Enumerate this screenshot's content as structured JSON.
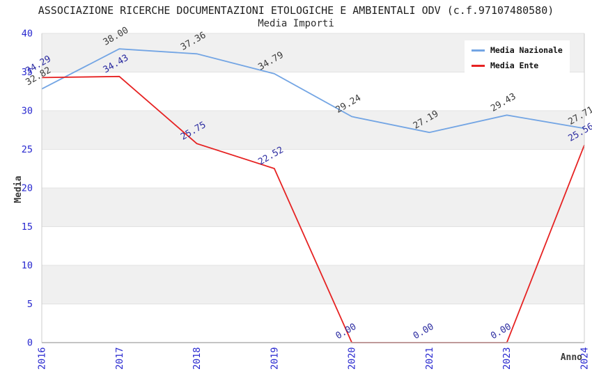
{
  "header": {
    "title": "ASSOCIAZIONE RICERCHE DOCUMENTAZIONI ETOLOGICHE E AMBIENTALI ODV (c.f.97107480580)",
    "subtitle": "Media Importi"
  },
  "chart_data": {
    "type": "line",
    "title": "ASSOCIAZIONE RICERCHE DOCUMENTAZIONI ETOLOGICHE E AMBIENTALI ODV (c.f.97107480580)",
    "subtitle": "Media Importi",
    "xlabel": "Anno",
    "ylabel": "Media",
    "x_categories": [
      "2016",
      "2017",
      "2018",
      "2019",
      "2020",
      "2021",
      "2023",
      "2024"
    ],
    "series": [
      {
        "name": "Media Nazionale",
        "color": "#73a5e4",
        "label_color": "#3c3c3c",
        "values": [
          32.82,
          38.0,
          37.36,
          34.79,
          29.24,
          27.19,
          29.43,
          27.71
        ]
      },
      {
        "name": "Media Ente",
        "color": "#e62222",
        "label_color": "#2b2ba0",
        "values": [
          34.29,
          34.43,
          25.75,
          22.52,
          0.0,
          0.0,
          0.0,
          25.56
        ]
      }
    ],
    "ylim": [
      0,
      40
    ],
    "ytick_step": 5,
    "tick_color": "#2727cf",
    "band_color": "#f0f0f0",
    "gridline_color": "#e2e2e2",
    "spine_color": "#cccccc",
    "axis_line_color": "#b0b0b0",
    "grid": "alternating-horizontal-bands",
    "legend_position": "top-right",
    "data_label_rotation_deg": -30,
    "x_tick_rotation_deg": -90
  }
}
